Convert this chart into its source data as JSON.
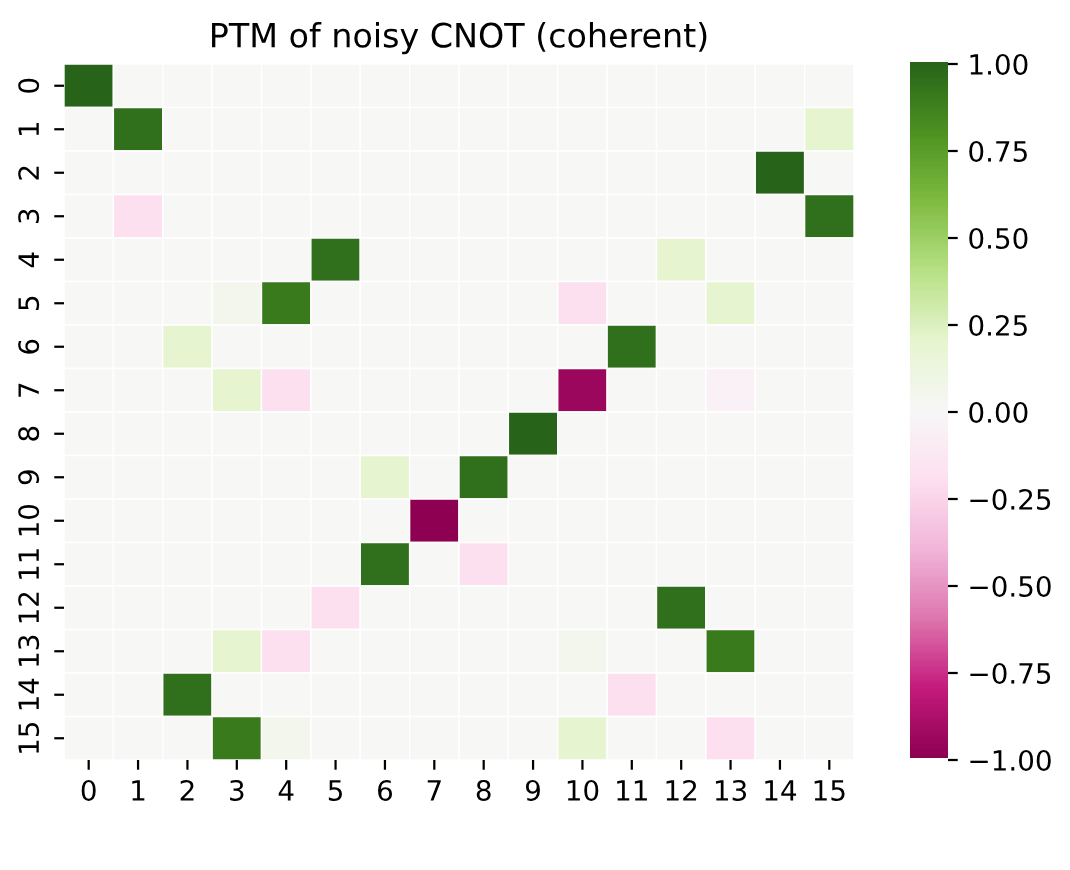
{
  "chart_data": {
    "type": "heatmap",
    "title": "PTM of noisy CNOT (coherent)",
    "categories": [
      "0",
      "1",
      "2",
      "3",
      "4",
      "5",
      "6",
      "7",
      "8",
      "9",
      "10",
      "11",
      "12",
      "13",
      "14",
      "15"
    ],
    "y_categories": [
      "0",
      "1",
      "2",
      "3",
      "4",
      "5",
      "6",
      "7",
      "8",
      "9",
      "10",
      "11",
      "12",
      "13",
      "14",
      "15"
    ],
    "cells": [
      [
        1,
        0,
        0,
        0,
        0,
        0,
        0,
        0,
        0,
        0,
        0,
        0,
        0,
        0,
        0,
        0
      ],
      [
        0,
        0.95,
        0,
        0,
        0,
        0,
        0,
        0,
        0,
        0,
        0,
        0,
        0,
        0,
        0,
        0.2
      ],
      [
        0,
        0,
        0,
        0,
        0,
        0,
        0,
        0,
        0,
        0,
        0,
        0,
        0,
        0,
        1,
        0
      ],
      [
        0,
        -0.2,
        0,
        0,
        0,
        0,
        0,
        0,
        0,
        0,
        0,
        0,
        0,
        0,
        0,
        0.95
      ],
      [
        0,
        0,
        0,
        0,
        0,
        0.95,
        0,
        0,
        0,
        0,
        0,
        0,
        0.2,
        0,
        0,
        0
      ],
      [
        0,
        0,
        0,
        0.05,
        0.9,
        0,
        0,
        0,
        0,
        0,
        -0.2,
        0,
        0,
        0.2,
        0,
        0
      ],
      [
        0,
        0,
        0.2,
        0,
        0,
        0,
        0,
        0,
        0,
        0,
        0,
        0.95,
        0,
        0,
        0,
        0
      ],
      [
        0,
        0,
        0,
        0.2,
        -0.2,
        0,
        0,
        0,
        0,
        0,
        -0.95,
        0,
        0,
        -0.05,
        0,
        0
      ],
      [
        0,
        0,
        0,
        0,
        0,
        0,
        0,
        0,
        0,
        1,
        0,
        0,
        0,
        0,
        0,
        0
      ],
      [
        0,
        0,
        0,
        0,
        0,
        0,
        0.2,
        0,
        0.95,
        0,
        0,
        0,
        0,
        0,
        0,
        0
      ],
      [
        0,
        0,
        0,
        0,
        0,
        0,
        0,
        -1,
        0,
        0,
        0,
        0,
        0,
        0,
        0,
        0
      ],
      [
        0,
        0,
        0,
        0,
        0,
        0,
        0.95,
        0,
        -0.2,
        0,
        0,
        0,
        0,
        0,
        0,
        0
      ],
      [
        0,
        0,
        0,
        0,
        0,
        -0.2,
        0,
        0,
        0,
        0,
        0,
        0,
        0.95,
        0,
        0,
        0
      ],
      [
        0,
        0,
        0,
        0.2,
        -0.2,
        0,
        0,
        0,
        0,
        0,
        0.05,
        0,
        0,
        0.9,
        0,
        0
      ],
      [
        0,
        0,
        0.95,
        0,
        0,
        0,
        0,
        0,
        0,
        0,
        0,
        -0.2,
        0,
        0,
        0,
        0
      ],
      [
        0,
        0,
        0,
        0.9,
        0.05,
        0,
        0,
        0,
        0,
        0,
        0.2,
        0,
        0,
        -0.2,
        0,
        0
      ]
    ],
    "clim": [
      -1,
      1
    ],
    "cticks": [
      {
        "value": -1,
        "label": "−1.00"
      },
      {
        "value": -0.75,
        "label": "−0.75"
      },
      {
        "value": -0.5,
        "label": "−0.50"
      },
      {
        "value": -0.25,
        "label": "−0.25"
      },
      {
        "value": 0,
        "label": "0.00"
      },
      {
        "value": 0.25,
        "label": "0.25"
      },
      {
        "value": 0.5,
        "label": "0.50"
      },
      {
        "value": 0.75,
        "label": "0.75"
      },
      {
        "value": 1,
        "label": "1.00"
      }
    ]
  }
}
